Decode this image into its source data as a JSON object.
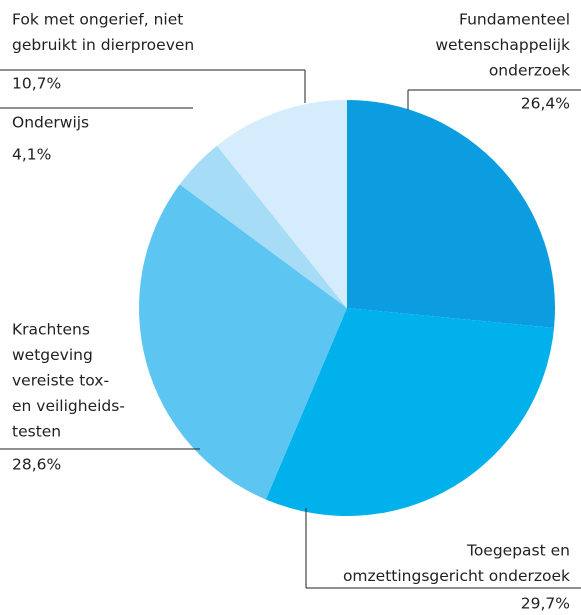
{
  "chart_data": {
    "type": "pie",
    "categories": [
      [
        "Fundamenteel",
        "wetenschappelijk",
        "onderzoek"
      ],
      [
        "Toegepast en",
        "omzettingsgericht onderzoek"
      ],
      [
        "Krachtens",
        "wetgeving",
        "vereiste tox-",
        "en veiligheids-",
        "testen"
      ],
      [
        "Onderwijs"
      ],
      [
        "Fok met ongerief, niet",
        "gebruikt in dierproeven"
      ]
    ],
    "values": [
      26.4,
      29.7,
      28.6,
      4.1,
      10.7
    ],
    "value_labels": [
      "26,4%",
      "29,7%",
      "28,6%",
      "4,1%",
      "10,7%"
    ],
    "colors": [
      "#0b9ddf",
      "#00b1ec",
      "#5cc5f2",
      "#a7dcf7",
      "#d4ecfb"
    ]
  }
}
